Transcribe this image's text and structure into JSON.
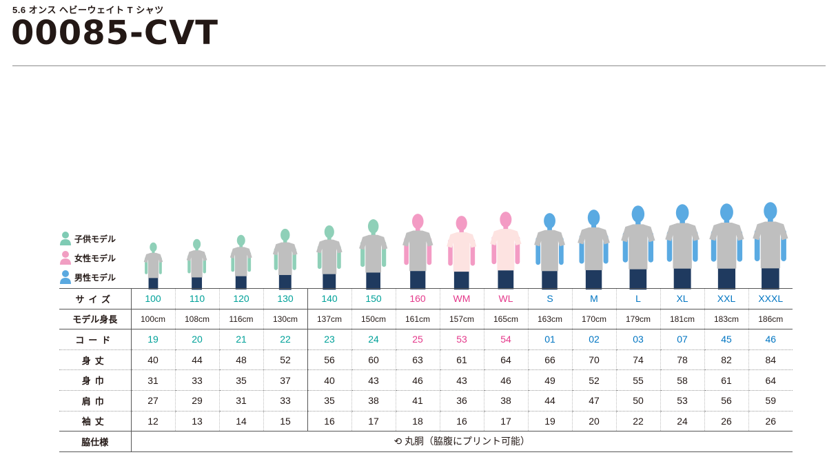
{
  "header": {
    "subtitle": "5.6 オンス ヘビーウェイト T シャツ",
    "product_code": "00085-CVT"
  },
  "legend": [
    {
      "label": "子供モデル",
      "icon": "kid-model-icon",
      "color": "#7fcbb4"
    },
    {
      "label": "女性モデル",
      "icon": "woman-model-icon",
      "color": "#f19ec2"
    },
    {
      "label": "男性モデル",
      "icon": "man-model-icon",
      "color": "#5aa9e0"
    }
  ],
  "colors": {
    "kid": "#00a199",
    "woman": "#e4398b",
    "man": "#0075c2",
    "shirt_gray": "#bfbfbf",
    "shirt_pink": "#fde3e1",
    "pants": "#1f3a5f"
  },
  "row_labels": {
    "size": "サイズ",
    "height": "モデル身長",
    "code": "コード",
    "length": "身丈",
    "width": "身巾",
    "shoulder": "肩巾",
    "sleeve": "袖丈",
    "side": "脇仕様"
  },
  "sizes": [
    {
      "size": "100",
      "height": "100cm",
      "code": "19",
      "length": "40",
      "width": "31",
      "shoulder": "27",
      "sleeve": "12",
      "group": "kid",
      "model_height": 100,
      "shirt": "gray"
    },
    {
      "size": "110",
      "height": "108cm",
      "code": "20",
      "length": "44",
      "width": "33",
      "shoulder": "29",
      "sleeve": "13",
      "group": "kid",
      "model_height": 108,
      "shirt": "gray"
    },
    {
      "size": "120",
      "height": "116cm",
      "code": "21",
      "length": "48",
      "width": "35",
      "shoulder": "31",
      "sleeve": "14",
      "group": "kid",
      "model_height": 116,
      "shirt": "gray"
    },
    {
      "size": "130",
      "height": "130cm",
      "code": "22",
      "length": "52",
      "width": "37",
      "shoulder": "33",
      "sleeve": "15",
      "group": "kid",
      "model_height": 130,
      "shirt": "gray"
    },
    {
      "size": "140",
      "height": "137cm",
      "code": "23",
      "length": "56",
      "width": "40",
      "shoulder": "35",
      "sleeve": "16",
      "group": "kid",
      "model_height": 137,
      "shirt": "gray"
    },
    {
      "size": "150",
      "height": "150cm",
      "code": "24",
      "length": "60",
      "width": "43",
      "shoulder": "38",
      "sleeve": "17",
      "group": "kid",
      "model_height": 150,
      "shirt": "gray"
    },
    {
      "size": "160",
      "height": "161cm",
      "code": "25",
      "length": "63",
      "width": "46",
      "shoulder": "41",
      "sleeve": "18",
      "group": "woman",
      "model_height": 161,
      "shirt": "gray"
    },
    {
      "size": "WM",
      "height": "157cm",
      "code": "53",
      "length": "61",
      "width": "43",
      "shoulder": "36",
      "sleeve": "16",
      "group": "woman",
      "model_height": 157,
      "shirt": "pink"
    },
    {
      "size": "WL",
      "height": "165cm",
      "code": "54",
      "length": "64",
      "width": "46",
      "shoulder": "38",
      "sleeve": "17",
      "group": "woman",
      "model_height": 165,
      "shirt": "pink"
    },
    {
      "size": "S",
      "height": "163cm",
      "code": "01",
      "length": "66",
      "width": "49",
      "shoulder": "44",
      "sleeve": "19",
      "group": "man",
      "model_height": 163,
      "shirt": "gray"
    },
    {
      "size": "M",
      "height": "170cm",
      "code": "02",
      "length": "70",
      "width": "52",
      "shoulder": "47",
      "sleeve": "20",
      "group": "man",
      "model_height": 170,
      "shirt": "gray"
    },
    {
      "size": "L",
      "height": "179cm",
      "code": "03",
      "length": "74",
      "width": "55",
      "shoulder": "50",
      "sleeve": "22",
      "group": "man",
      "model_height": 179,
      "shirt": "gray"
    },
    {
      "size": "XL",
      "height": "181cm",
      "code": "07",
      "length": "78",
      "width": "58",
      "shoulder": "53",
      "sleeve": "24",
      "group": "man",
      "model_height": 181,
      "shirt": "gray"
    },
    {
      "size": "XXL",
      "height": "183cm",
      "code": "45",
      "length": "82",
      "width": "61",
      "shoulder": "56",
      "sleeve": "26",
      "group": "man",
      "model_height": 183,
      "shirt": "gray"
    },
    {
      "size": "XXXL",
      "height": "186cm",
      "code": "46",
      "length": "84",
      "width": "64",
      "shoulder": "59",
      "sleeve": "26",
      "group": "man",
      "model_height": 186,
      "shirt": "gray"
    }
  ],
  "side_spec": {
    "icon": "round-body-icon",
    "text": "丸胴（脇腹にプリント可能）"
  }
}
